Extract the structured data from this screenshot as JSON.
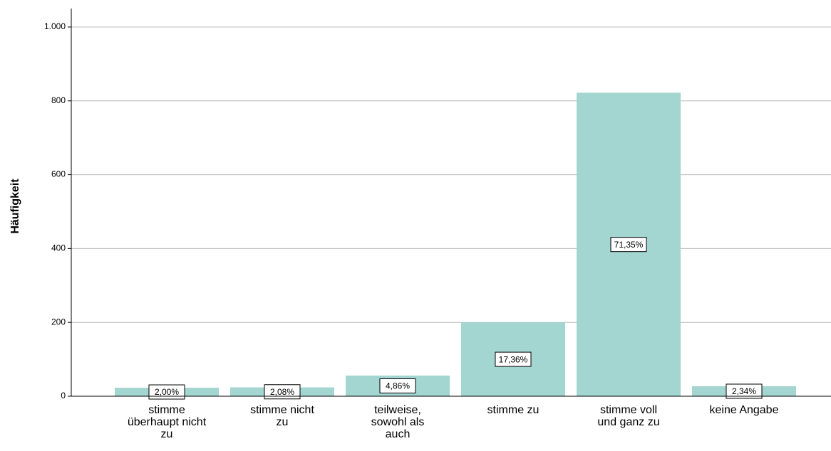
{
  "chart_data": {
    "type": "bar",
    "y_label": "Häufigkeit",
    "categories": [
      [
        "stimme",
        "überhaupt nicht",
        "zu"
      ],
      [
        "stimme nicht",
        "zu"
      ],
      [
        "teilweise,",
        "sowohl als",
        "auch"
      ],
      [
        "stimme zu"
      ],
      [
        "stimme voll",
        "und ganz zu"
      ],
      [
        "keine Angabe"
      ]
    ],
    "values": [
      23,
      24,
      56,
      200,
      822,
      27
    ],
    "percents": [
      2.0,
      2.08,
      4.86,
      17.36,
      71.35,
      2.34
    ],
    "percent_labels": [
      "2,00%",
      "2,08%",
      "4,86%",
      "17,36%",
      "71,35%",
      "2,34%"
    ],
    "color": "#a3d5d1",
    "ylim": [
      0,
      1050
    ],
    "yticks": [
      0,
      200,
      400,
      600,
      800,
      {
        "value": 1000,
        "label": "1.000"
      }
    ],
    "grid": true
  }
}
